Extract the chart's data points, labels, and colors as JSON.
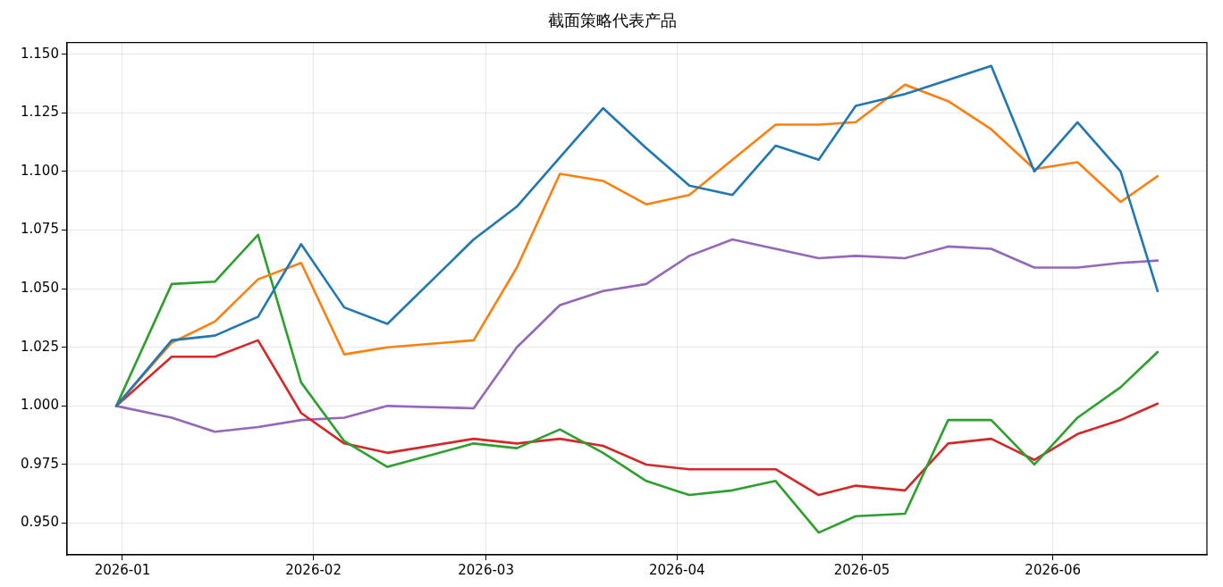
{
  "chart_data": {
    "type": "line",
    "title": "截面策略代表产品",
    "x": [
      "2025-12-31",
      "2026-01-09",
      "2026-01-16",
      "2026-01-23",
      "2026-01-30",
      "2026-02-06",
      "2026-02-13",
      "2026-02-27",
      "2026-03-06",
      "2026-03-13",
      "2026-03-20",
      "2026-03-27",
      "2026-04-03",
      "2026-04-10",
      "2026-04-17",
      "2026-04-24",
      "2026-04-30",
      "2026-05-08",
      "2026-05-15",
      "2026-05-22",
      "2026-05-29",
      "2026-06-05",
      "2026-06-12",
      "2026-06-18"
    ],
    "series": [
      {
        "color": "#1f77b4",
        "values": [
          1.0,
          1.028,
          1.03,
          1.038,
          1.069,
          1.042,
          1.035,
          1.071,
          1.085,
          1.106,
          1.127,
          1.11,
          1.094,
          1.09,
          1.111,
          1.105,
          1.128,
          1.133,
          1.139,
          1.145,
          1.1,
          1.121,
          1.1,
          1.049
        ]
      },
      {
        "color": "#ff7f0e",
        "values": [
          1.0,
          1.027,
          1.036,
          1.054,
          1.061,
          1.022,
          1.025,
          1.028,
          1.059,
          1.099,
          1.096,
          1.086,
          1.09,
          1.105,
          1.12,
          1.12,
          1.121,
          1.137,
          1.13,
          1.118,
          1.101,
          1.104,
          1.087,
          1.098
        ]
      },
      {
        "color": "#2ca02c",
        "values": [
          1.0,
          1.052,
          1.053,
          1.073,
          1.01,
          0.985,
          0.974,
          0.984,
          0.982,
          0.99,
          0.98,
          0.968,
          0.962,
          0.964,
          0.968,
          0.946,
          0.953,
          0.954,
          0.994,
          0.994,
          0.975,
          0.995,
          1.008,
          1.023
        ]
      },
      {
        "color": "#d62728",
        "values": [
          1.0,
          1.021,
          1.021,
          1.028,
          0.997,
          0.984,
          0.98,
          0.986,
          0.984,
          0.986,
          0.983,
          0.975,
          0.973,
          0.973,
          0.973,
          0.962,
          0.966,
          0.964,
          0.984,
          0.986,
          0.977,
          0.988,
          0.994,
          1.001
        ]
      },
      {
        "color": "#9467bd",
        "values": [
          1.0,
          0.995,
          0.989,
          0.991,
          0.994,
          0.995,
          1.0,
          0.999,
          1.025,
          1.043,
          1.049,
          1.052,
          1.064,
          1.071,
          1.067,
          1.063,
          1.064,
          1.063,
          1.068,
          1.067,
          1.059,
          1.059,
          1.061,
          1.062
        ]
      }
    ],
    "xlim": [
      "2025-12-23",
      "2026-06-26"
    ],
    "xticks": [
      {
        "value": "2026-01-01",
        "label": "2026-01"
      },
      {
        "value": "2026-02-01",
        "label": "2026-02"
      },
      {
        "value": "2026-03-01",
        "label": "2026-03"
      },
      {
        "value": "2026-04-01",
        "label": "2026-04"
      },
      {
        "value": "2026-05-01",
        "label": "2026-05"
      },
      {
        "value": "2026-06-01",
        "label": "2026-06"
      }
    ],
    "ylim": [
      0.9365,
      1.155
    ],
    "yticks": [
      {
        "value": 0.95,
        "label": "0.950"
      },
      {
        "value": 0.975,
        "label": "0.975"
      },
      {
        "value": 1.0,
        "label": "1.000"
      },
      {
        "value": 1.025,
        "label": "1.025"
      },
      {
        "value": 1.05,
        "label": "1.050"
      },
      {
        "value": 1.075,
        "label": "1.075"
      },
      {
        "value": 1.1,
        "label": "1.100"
      },
      {
        "value": 1.125,
        "label": "1.125"
      },
      {
        "value": 1.15,
        "label": "1.150"
      }
    ],
    "grid": true,
    "legend": false,
    "marker": "none",
    "line_style": "solid"
  }
}
